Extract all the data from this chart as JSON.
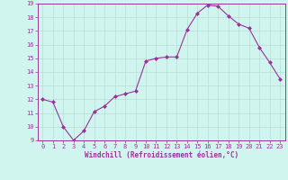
{
  "x": [
    0,
    1,
    2,
    3,
    4,
    5,
    6,
    7,
    8,
    9,
    10,
    11,
    12,
    13,
    14,
    15,
    16,
    17,
    18,
    19,
    20,
    21,
    22,
    23
  ],
  "y": [
    12.0,
    11.8,
    10.0,
    9.0,
    9.7,
    11.1,
    11.5,
    12.2,
    12.4,
    12.6,
    14.8,
    15.0,
    15.1,
    15.1,
    17.1,
    18.3,
    18.9,
    18.8,
    18.1,
    17.5,
    17.2,
    15.8,
    14.7,
    13.5
  ],
  "line_color": "#993399",
  "marker": "D",
  "marker_size": 2,
  "bg_color": "#cff5ee",
  "grid_color": "#b8ddd6",
  "xlabel": "Windchill (Refroidissement éolien,°C)",
  "xlabel_color": "#993399",
  "ylim": [
    9,
    19
  ],
  "xlim": [
    -0.5,
    23.5
  ],
  "yticks": [
    9,
    10,
    11,
    12,
    13,
    14,
    15,
    16,
    17,
    18,
    19
  ],
  "xticks": [
    0,
    1,
    2,
    3,
    4,
    5,
    6,
    7,
    8,
    9,
    10,
    11,
    12,
    13,
    14,
    15,
    16,
    17,
    18,
    19,
    20,
    21,
    22,
    23
  ],
  "tick_fontsize": 5,
  "xlabel_fontsize": 5.5
}
